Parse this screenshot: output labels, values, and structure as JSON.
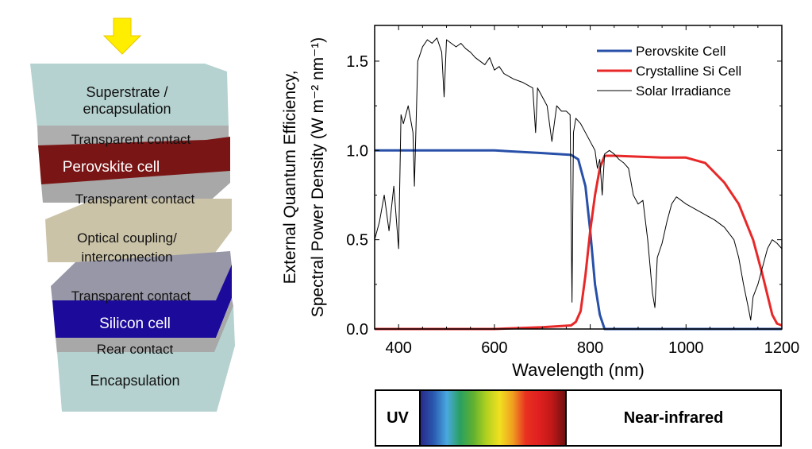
{
  "diagram": {
    "layers": [
      {
        "label": "Superstrate / encapsulation",
        "line1": "Superstrate /",
        "line2": "encapsulation"
      },
      {
        "label": "Transparent contact"
      },
      {
        "label": "Perovskite cell"
      },
      {
        "label": "Transparent contact"
      },
      {
        "label": "Optical coupling/ interconnection",
        "line1": "Optical coupling/",
        "line2": "interconnection"
      },
      {
        "label": "Transparent contact"
      },
      {
        "label": "Silicon cell"
      },
      {
        "label": "Rear contact"
      },
      {
        "label": "Encapsulation"
      }
    ],
    "arrow_color": "#ffee00"
  },
  "chart_data": {
    "type": "line",
    "xlabel": "Wavelength (nm)",
    "ylabel_line1": "External Quantum Efficiency,",
    "ylabel_line2": "Spectral Power Density (W m⁻² nm⁻¹)",
    "xlim": [
      350,
      1200
    ],
    "ylim": [
      0,
      1.7
    ],
    "xticks": [
      400,
      600,
      800,
      1000,
      1200
    ],
    "yticks": [
      0.0,
      0.5,
      1.0,
      1.5
    ],
    "legend_position": "top-right",
    "series": [
      {
        "name": "Perovskite Cell",
        "color": "#2850a8",
        "x": [
          350,
          500,
          600,
          700,
          760,
          775,
          790,
          800,
          810,
          820,
          830,
          850,
          1200
        ],
        "y": [
          1.0,
          1.0,
          1.0,
          0.985,
          0.975,
          0.95,
          0.8,
          0.55,
          0.25,
          0.08,
          0,
          0,
          0
        ]
      },
      {
        "name": "Crystalline Si Cell",
        "color": "#e82828",
        "x": [
          350,
          600,
          700,
          760,
          770,
          780,
          790,
          800,
          810,
          820,
          830,
          850,
          950,
          1000,
          1040,
          1080,
          1110,
          1140,
          1160,
          1180,
          1190,
          1200
        ],
        "y": [
          0,
          0,
          0.01,
          0.02,
          0.04,
          0.1,
          0.3,
          0.55,
          0.75,
          0.9,
          0.97,
          0.97,
          0.96,
          0.96,
          0.93,
          0.82,
          0.7,
          0.5,
          0.3,
          0.08,
          0.03,
          0.02
        ]
      },
      {
        "name": "Solar Irradiance",
        "color": "#000000",
        "x": [
          350,
          360,
          370,
          380,
          390,
          400,
          405,
          410,
          420,
          430,
          433,
          440,
          450,
          460,
          470,
          480,
          490,
          495,
          500,
          510,
          520,
          530,
          540,
          550,
          560,
          570,
          580,
          590,
          600,
          610,
          620,
          640,
          660,
          680,
          686,
          690,
          700,
          710,
          720,
          730,
          740,
          750,
          758,
          762,
          765,
          770,
          780,
          790,
          800,
          810,
          815,
          820,
          825,
          830,
          840,
          850,
          860,
          870,
          880,
          890,
          900,
          910,
          920,
          930,
          935,
          940,
          950,
          960,
          970,
          980,
          990,
          1000,
          1020,
          1040,
          1060,
          1080,
          1100,
          1110,
          1120,
          1130,
          1135,
          1140,
          1150,
          1160,
          1170,
          1180,
          1190,
          1200
        ],
        "y": [
          0.5,
          0.6,
          0.75,
          0.55,
          0.8,
          0.45,
          1.2,
          1.15,
          1.25,
          1.1,
          0.8,
          1.5,
          1.58,
          1.62,
          1.6,
          1.63,
          1.55,
          1.3,
          1.62,
          1.6,
          1.58,
          1.6,
          1.57,
          1.55,
          1.52,
          1.5,
          1.48,
          1.52,
          1.45,
          1.47,
          1.43,
          1.4,
          1.38,
          1.35,
          1.1,
          1.35,
          1.3,
          1.25,
          1.05,
          1.25,
          1.22,
          1.22,
          1.2,
          0.15,
          1.1,
          1.18,
          1.15,
          1.1,
          1.05,
          1.0,
          0.9,
          0.95,
          0.75,
          0.98,
          1.0,
          0.98,
          0.95,
          0.93,
          0.9,
          0.75,
          0.7,
          0.72,
          0.5,
          0.2,
          0.12,
          0.4,
          0.48,
          0.6,
          0.7,
          0.74,
          0.72,
          0.7,
          0.67,
          0.64,
          0.61,
          0.57,
          0.5,
          0.4,
          0.25,
          0.12,
          0.05,
          0.18,
          0.25,
          0.35,
          0.45,
          0.5,
          0.48,
          0.45
        ]
      }
    ]
  },
  "spectrum_bar": {
    "uv": "UV",
    "nir": "Near-infrared"
  }
}
